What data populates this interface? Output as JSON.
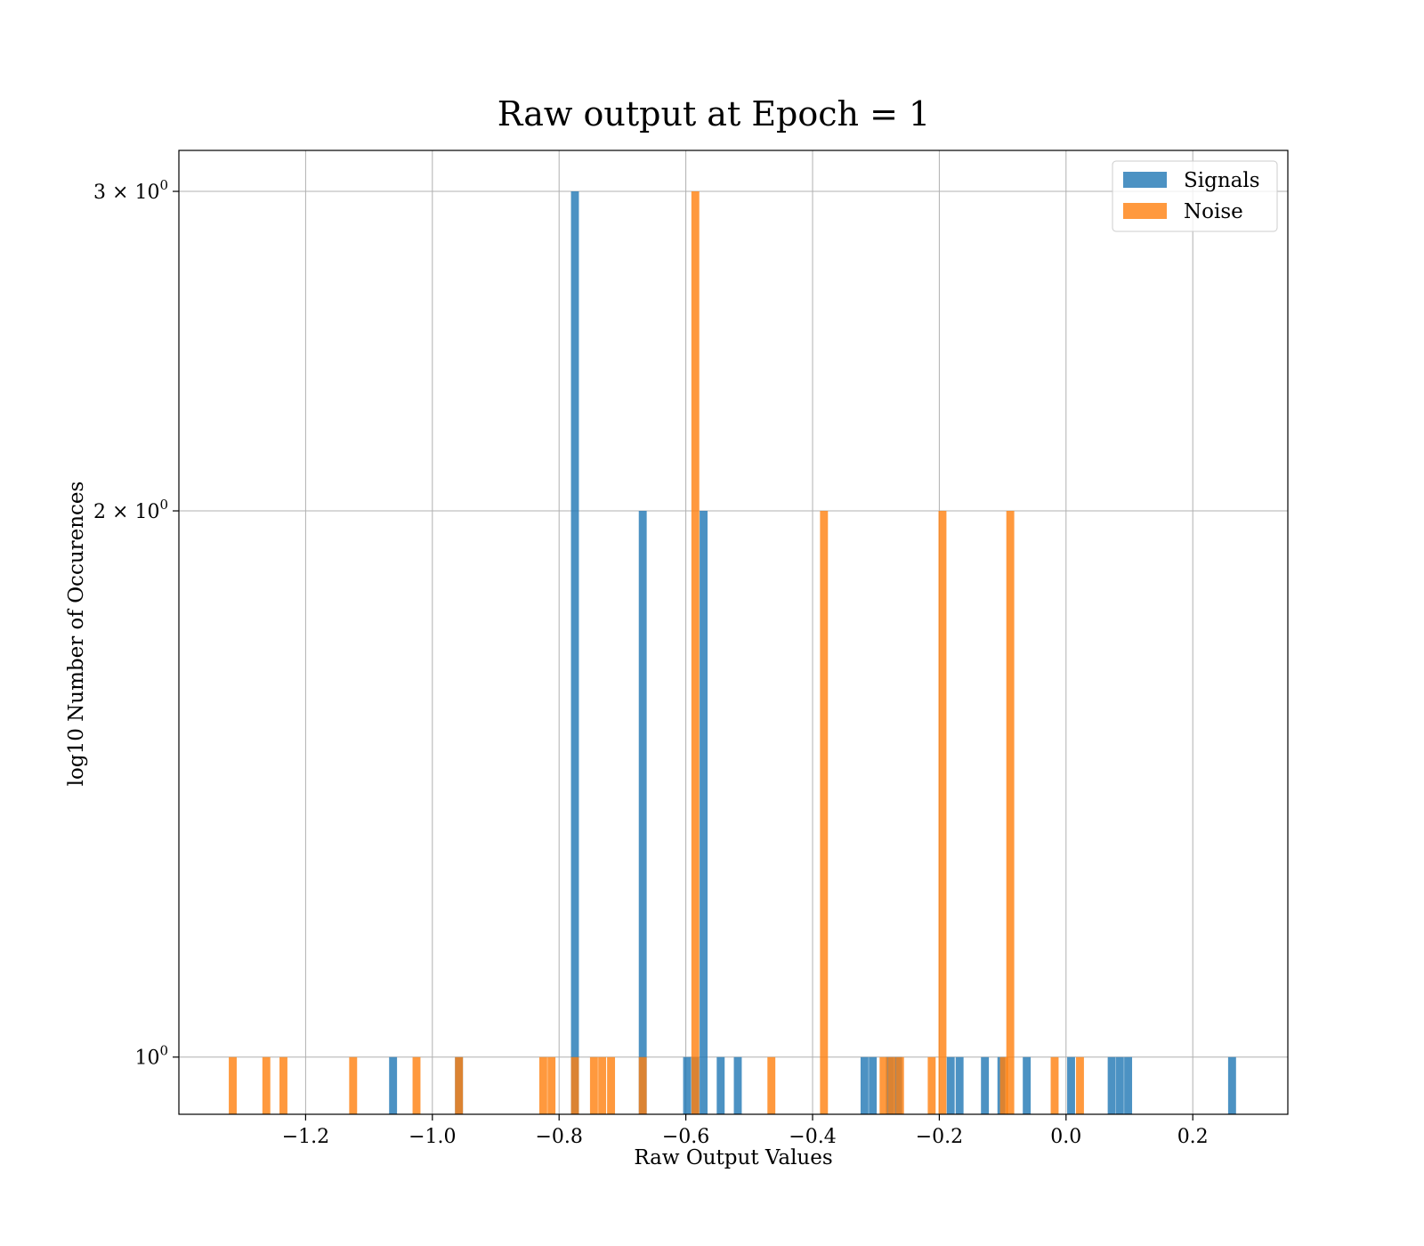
{
  "chart_data": {
    "type": "bar",
    "title": "Raw output at Epoch = 1",
    "xlabel": "Raw Output Values",
    "ylabel": "log10 Number of Occurences",
    "xlim": [
      -1.4,
      0.35
    ],
    "ylim": [
      0.93,
      3.16
    ],
    "y_scale": "log",
    "grid": true,
    "legend_position": "top-right",
    "bin_width": 0.0125,
    "x_ticks": [
      {
        "value": -1.2,
        "label": "−1.2"
      },
      {
        "value": -1.0,
        "label": "−1.0"
      },
      {
        "value": -0.8,
        "label": "−0.8"
      },
      {
        "value": -0.6,
        "label": "−0.6"
      },
      {
        "value": -0.4,
        "label": "−0.4"
      },
      {
        "value": -0.2,
        "label": "−0.2"
      },
      {
        "value": 0.0,
        "label": "0.0"
      },
      {
        "value": 0.2,
        "label": "0.2"
      }
    ],
    "y_ticks": [
      {
        "value": 1,
        "base": "10",
        "exp": "0"
      },
      {
        "value": 2,
        "base": "2 × 10",
        "exp": "0"
      },
      {
        "value": 3,
        "base": "3 × 10",
        "exp": "0"
      }
    ],
    "series": [
      {
        "name": "Signals",
        "color": "#1f77b4",
        "opacity": 0.8,
        "bars": [
          {
            "x": -1.062,
            "y": 1
          },
          {
            "x": -0.958,
            "y": 1
          },
          {
            "x": -0.775,
            "y": 3
          },
          {
            "x": -0.668,
            "y": 2
          },
          {
            "x": -0.598,
            "y": 1
          },
          {
            "x": -0.585,
            "y": 1
          },
          {
            "x": -0.572,
            "y": 2
          },
          {
            "x": -0.545,
            "y": 1
          },
          {
            "x": -0.518,
            "y": 1
          },
          {
            "x": -0.318,
            "y": 1
          },
          {
            "x": -0.305,
            "y": 1
          },
          {
            "x": -0.278,
            "y": 1
          },
          {
            "x": -0.265,
            "y": 1
          },
          {
            "x": -0.182,
            "y": 1
          },
          {
            "x": -0.168,
            "y": 1
          },
          {
            "x": -0.128,
            "y": 1
          },
          {
            "x": -0.102,
            "y": 1
          },
          {
            "x": -0.062,
            "y": 1
          },
          {
            "x": 0.008,
            "y": 1
          },
          {
            "x": 0.072,
            "y": 1
          },
          {
            "x": 0.085,
            "y": 1
          },
          {
            "x": 0.098,
            "y": 1
          },
          {
            "x": 0.262,
            "y": 1
          }
        ]
      },
      {
        "name": "Noise",
        "color": "#ff7f0e",
        "opacity": 0.8,
        "bars": [
          {
            "x": -1.315,
            "y": 1
          },
          {
            "x": -1.262,
            "y": 1
          },
          {
            "x": -1.235,
            "y": 1
          },
          {
            "x": -1.125,
            "y": 1
          },
          {
            "x": -1.025,
            "y": 1
          },
          {
            "x": -0.958,
            "y": 1
          },
          {
            "x": -0.825,
            "y": 1
          },
          {
            "x": -0.812,
            "y": 1
          },
          {
            "x": -0.775,
            "y": 1
          },
          {
            "x": -0.745,
            "y": 1
          },
          {
            "x": -0.732,
            "y": 1
          },
          {
            "x": -0.718,
            "y": 1
          },
          {
            "x": -0.668,
            "y": 1
          },
          {
            "x": -0.585,
            "y": 3
          },
          {
            "x": -0.465,
            "y": 1
          },
          {
            "x": -0.382,
            "y": 2
          },
          {
            "x": -0.288,
            "y": 1
          },
          {
            "x": -0.275,
            "y": 1
          },
          {
            "x": -0.262,
            "y": 1
          },
          {
            "x": -0.212,
            "y": 1
          },
          {
            "x": -0.195,
            "y": 2
          },
          {
            "x": -0.098,
            "y": 1
          },
          {
            "x": -0.088,
            "y": 2
          },
          {
            "x": -0.018,
            "y": 1
          },
          {
            "x": 0.022,
            "y": 1
          }
        ]
      }
    ]
  }
}
